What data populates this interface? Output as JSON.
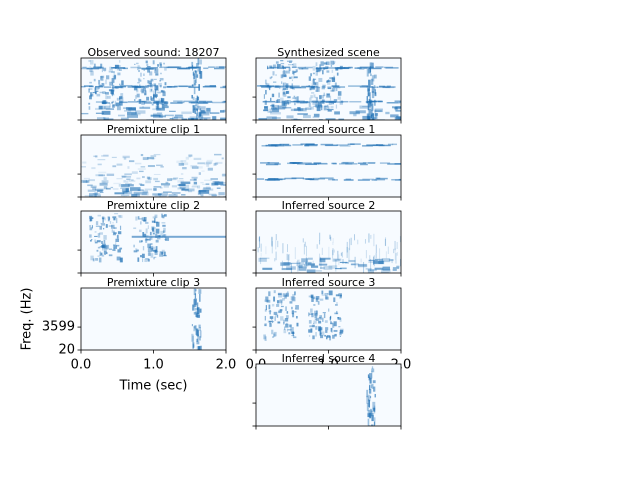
{
  "chart_data": {
    "type": "spectrogram",
    "panels": [
      {
        "title": "Observed sound: 18207"
      },
      {
        "title": "Premixture clip 1"
      },
      {
        "title": "Premixture clip 2"
      },
      {
        "title": "Premixture clip 3"
      },
      {
        "title": "Synthesized scene"
      },
      {
        "title": "Inferred source 1"
      },
      {
        "title": "Inferred source 2"
      },
      {
        "title": "Inferred source 3"
      },
      {
        "title": "Inferred source 4"
      }
    ],
    "xlabel": "Time (sec)",
    "ylabel": "Freq. (Hz)",
    "xlim": [
      0,
      2
    ],
    "xticks": [
      {
        "value": 0,
        "label": "0.0"
      },
      {
        "value": 1,
        "label": "1.0"
      },
      {
        "value": 2,
        "label": "2.0"
      }
    ],
    "ylim": [
      20,
      9700
    ],
    "yticks": [
      20,
      3599
    ]
  }
}
